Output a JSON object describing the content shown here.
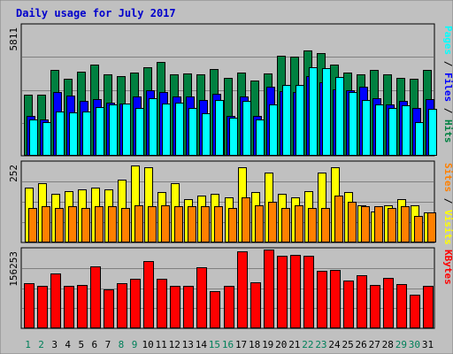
{
  "chart_data": {
    "type": "bar",
    "title": "Daily usage for July 2017",
    "categories": [
      "1",
      "2",
      "3",
      "4",
      "5",
      "6",
      "7",
      "8",
      "9",
      "10",
      "11",
      "12",
      "13",
      "14",
      "15",
      "16",
      "17",
      "18",
      "19",
      "20",
      "21",
      "22",
      "23",
      "24",
      "25",
      "26",
      "27",
      "28",
      "29",
      "30",
      "31"
    ],
    "weekend_categories": [
      "1",
      "2",
      "8",
      "9",
      "15",
      "16",
      "22",
      "23",
      "29",
      "30"
    ],
    "panels": [
      {
        "name": "hits-files-pages",
        "ylabel": "Pages / Files / Hits",
        "ymax_label": "5811",
        "ylim": [
          0,
          5811
        ],
        "series": [
          {
            "name": "Hits",
            "color": "#008040",
            "values": [
              2750,
              2750,
              3850,
              3450,
              3800,
              4100,
              3650,
              3600,
              3750,
              4000,
              4200,
              3650,
              3700,
              3650,
              3900,
              3500,
              3750,
              3400,
              3700,
              4500,
              4450,
              4750,
              4600,
              4100,
              3750,
              3650,
              3850,
              3650,
              3500,
              3450,
              3850
            ]
          },
          {
            "name": "Files",
            "color": "#0000ff",
            "values": [
              1800,
              1650,
              2850,
              2700,
              2450,
              2550,
              2400,
              2350,
              2650,
              2950,
              2850,
              2650,
              2650,
              2500,
              2800,
              1800,
              2650,
              1800,
              3100,
              2900,
              2850,
              3600,
              3300,
              3000,
              2950,
              3100,
              2600,
              2300,
              2450,
              2150,
              2550
            ]
          },
          {
            "name": "Pages",
            "color": "#00ffff",
            "values": [
              1650,
              1500,
              2000,
              1950,
              2000,
              2200,
              2300,
              2350,
              2150,
              2600,
              2350,
              2400,
              2150,
              1900,
              2500,
              1700,
              2450,
              1650,
              2300,
              3200,
              3200,
              4000,
              3950,
              3550,
              2850,
              2500,
              2300,
              2150,
              2250,
              1500,
              2100
            ]
          }
        ]
      },
      {
        "name": "visits-sites",
        "ylabel": "Sites / Visits",
        "ymax_label": "252",
        "ylim": [
          0,
          252
        ],
        "series": [
          {
            "name": "Visits",
            "color": "#ffff00",
            "values": [
              175,
              190,
              155,
              165,
              170,
              175,
              170,
              200,
              245,
              240,
              160,
              190,
              140,
              150,
              155,
              145,
              240,
              160,
              225,
              155,
              145,
              165,
              225,
              240,
              160,
              120,
              100,
              120,
              140,
              120,
              95
            ]
          },
          {
            "name": "Sites",
            "color": "#ff8000",
            "values": [
              110,
              115,
              110,
              115,
              110,
              115,
              115,
              110,
              120,
              115,
              120,
              115,
              115,
              115,
              115,
              110,
              145,
              120,
              130,
              110,
              120,
              110,
              110,
              150,
              130,
              115,
              115,
              110,
              115,
              85,
              95
            ]
          }
        ]
      },
      {
        "name": "kbytes",
        "ylabel": "KBytes",
        "ymax_label": "156253",
        "ylim": [
          0,
          156253
        ],
        "series": [
          {
            "name": "KBytes",
            "color": "#ff0000",
            "values": [
              90000,
              85000,
              110000,
              85000,
              87000,
              125000,
              78000,
              90000,
              100000,
              135000,
              100000,
              86000,
              86000,
              122000,
              75000,
              85000,
              155000,
              92000,
              158000,
              145000,
              148000,
              145000,
              115000,
              117000,
              96000,
              107000,
              87000,
              102000,
              88000,
              68000,
              86000
            ]
          }
        ]
      }
    ]
  }
}
